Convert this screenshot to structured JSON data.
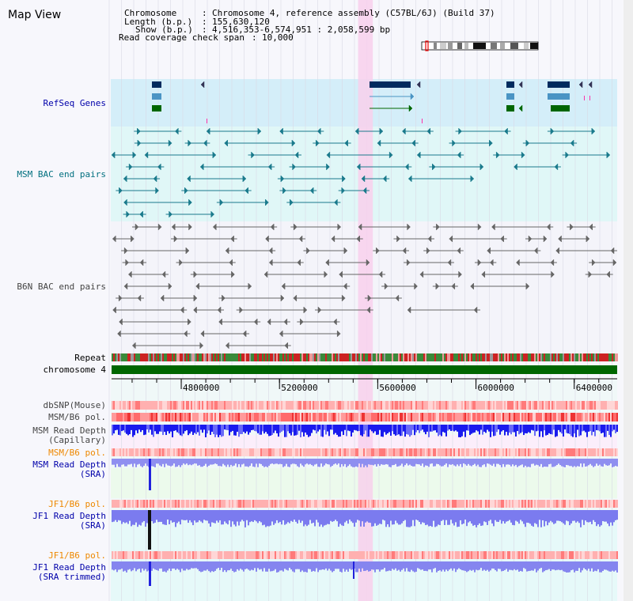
{
  "title": "Map View",
  "header": {
    "chromosome_label": "Chromosome",
    "chromosome_value": "Chromosome 4, reference assembly (C57BL/6J) (Build 37)",
    "length_label": "Length (b.p.)",
    "length_value": "155,630,120",
    "show_label": "Show (b.p.)",
    "show_value": "4,516,353-6,574,951 : 2,058,599 bp",
    "coverage_label": "Read coverage check span",
    "coverage_value": "10,000",
    "separator": ":"
  },
  "tracks": {
    "refseq": "RefSeq Genes",
    "msm_bac": "MSM BAC end pairs",
    "b6n_bac": "B6N BAC end pairs",
    "repeat": "Repeat",
    "chromosome": "chromosome 4",
    "dbsnp": "dbSNP(Mouse)",
    "msm_b6_pol": "MSM/B6 pol.",
    "msm_depth_cap_1": "MSM Read Depth",
    "msm_depth_cap_2": "(Capillary)",
    "msm_b6_pol_2": "MSM/B6 pol.",
    "msm_depth_sra_1": "MSM Read Depth",
    "msm_depth_sra_2": "(SRA)",
    "jf1_b6_pol": "JF1/B6 pol.",
    "jf1_depth_sra_1": "JF1 Read Depth",
    "jf1_depth_sra_2": "(SRA)",
    "jf1_b6_pol_2": "JF1/B6 pol.",
    "jf1_depth_trim_1": "JF1 Read Depth",
    "jf1_depth_trim_2": "(SRA trimmed)"
  },
  "axis": {
    "ticks": [
      {
        "value": 4800000,
        "label": "4800000"
      },
      {
        "value": 5200000,
        "label": "5200000"
      },
      {
        "value": 5600000,
        "label": "5600000"
      },
      {
        "value": 6000000,
        "label": "6000000"
      },
      {
        "value": 6400000,
        "label": "6400000"
      }
    ],
    "range": [
      4516353,
      6574951
    ],
    "highlight": [
      5520000,
      5580000
    ]
  },
  "colors": {
    "refseq_bg": "#d4eef9",
    "msm_bg": "#e0f7f7",
    "b6n_bg": "#f4f4fa",
    "label_blue": "#0000aa",
    "label_teal": "#006f7f",
    "label_orange": "#ee8800",
    "highlight": "#f8d0ec",
    "chromosome_bar": "#006600"
  }
}
